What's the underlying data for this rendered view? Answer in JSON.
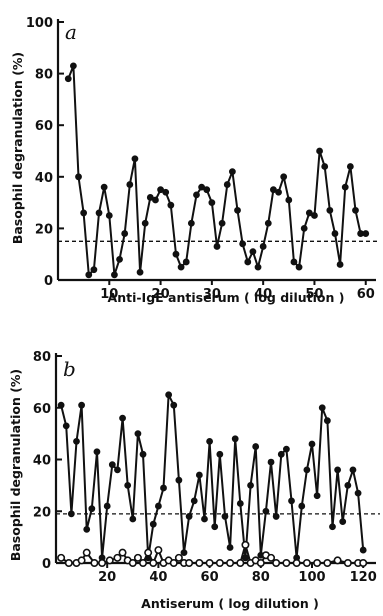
{
  "chart_data": [
    {
      "panel_label": "a",
      "type": "line",
      "xlabel": "Anti-IgE antiserum  ( log dilution )",
      "ylabel": "Basophil degranulation (%)",
      "xlim": [
        0,
        62
      ],
      "ylim": [
        0,
        100
      ],
      "xticks": [
        10,
        20,
        30,
        40,
        50,
        60
      ],
      "yticks": [
        0,
        20,
        40,
        60,
        80,
        100
      ],
      "reference_line": 15,
      "series": [
        {
          "marker": "filled-circle",
          "x": [
            2,
            3,
            4,
            5,
            6,
            7,
            8,
            9,
            10,
            11,
            12,
            13,
            14,
            15,
            16,
            17,
            18,
            19,
            20,
            21,
            22,
            23,
            24,
            25,
            26,
            27,
            28,
            29,
            30,
            31,
            32,
            33,
            34,
            35,
            36,
            37,
            38,
            39,
            40,
            41,
            42,
            43,
            44,
            45,
            46,
            47,
            48,
            49,
            50,
            51,
            52,
            53,
            54,
            55,
            56,
            57,
            58,
            59,
            60
          ],
          "y": [
            78,
            83,
            40,
            26,
            2,
            4,
            26,
            36,
            25,
            2,
            8,
            18,
            37,
            47,
            3,
            22,
            32,
            31,
            35,
            34,
            29,
            10,
            5,
            7,
            22,
            33,
            36,
            35,
            30,
            13,
            22,
            37,
            42,
            27,
            14,
            7,
            11,
            5,
            13,
            22,
            35,
            34,
            40,
            31,
            7,
            5,
            20,
            26,
            25,
            50,
            44,
            27,
            18,
            6,
            36,
            44,
            27,
            18,
            18
          ]
        }
      ]
    },
    {
      "panel_label": "b",
      "type": "line",
      "xlabel": "Antiserum  ( log dilution )",
      "ylabel": "Basophil degranulation (%)",
      "xlim": [
        0,
        125
      ],
      "ylim": [
        0,
        80
      ],
      "xticks": [
        20,
        40,
        60,
        80,
        100,
        120
      ],
      "yticks": [
        0,
        20,
        40,
        60,
        80
      ],
      "reference_line": 19,
      "series": [
        {
          "marker": "filled-circle",
          "x": [
            2,
            4,
            6,
            8,
            10,
            12,
            14,
            16,
            18,
            20,
            22,
            24,
            26,
            28,
            30,
            32,
            34,
            36,
            38,
            40,
            42,
            44,
            46,
            48,
            50,
            52,
            54,
            56,
            58,
            60,
            62,
            64,
            66,
            68,
            70,
            72,
            74,
            76,
            78,
            80,
            82,
            84,
            86,
            88,
            90,
            92,
            94,
            96,
            98,
            100,
            102,
            104,
            106,
            108,
            110,
            112,
            114,
            116,
            118,
            120
          ],
          "y": [
            61,
            53,
            19,
            47,
            61,
            13,
            21,
            43,
            2,
            22,
            38,
            36,
            56,
            30,
            17,
            50,
            42,
            2,
            15,
            22,
            29,
            65,
            61,
            32,
            4,
            18,
            24,
            34,
            17,
            47,
            14,
            42,
            18,
            6,
            48,
            23,
            2,
            30,
            45,
            3,
            20,
            39,
            18,
            42,
            44,
            24,
            2,
            22,
            36,
            46,
            26,
            60,
            55,
            14,
            36,
            16,
            30,
            36,
            27,
            5
          ]
        },
        {
          "marker": "open-circle",
          "x": [
            2,
            5,
            8,
            10,
            12,
            15,
            18,
            21,
            24,
            26,
            28,
            30,
            32,
            34,
            36,
            38,
            40,
            42,
            44,
            46,
            48,
            50,
            52,
            56,
            60,
            64,
            68,
            72,
            74,
            76,
            78,
            80,
            82,
            84,
            86,
            90,
            94,
            98,
            102,
            106,
            110,
            114,
            118,
            120
          ],
          "y": [
            2,
            0,
            0,
            1,
            4,
            0,
            0,
            1,
            2,
            4,
            1,
            0,
            2,
            0,
            4,
            0,
            5,
            0,
            1,
            0,
            2,
            0,
            0,
            0,
            0,
            0,
            0,
            0,
            7,
            0,
            1,
            0,
            3,
            2,
            0,
            0,
            0,
            0,
            0,
            0,
            1,
            0,
            0,
            0
          ]
        }
      ]
    }
  ]
}
